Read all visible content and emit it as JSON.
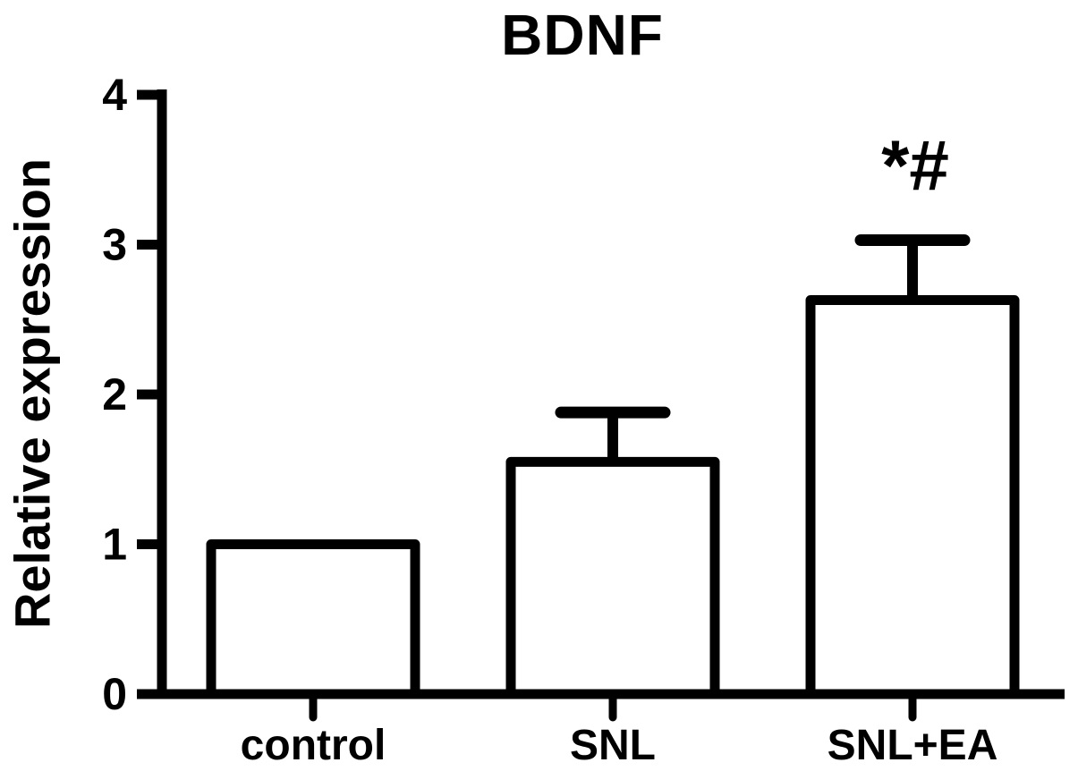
{
  "chart_data": {
    "type": "bar",
    "title": "BDNF",
    "ylabel": "Relative expression",
    "xlabel": "",
    "categories": [
      "control",
      "SNL",
      "SNL+EA"
    ],
    "values": [
      1.0,
      1.55,
      2.63
    ],
    "errors_upper": [
      0,
      0.33,
      0.4
    ],
    "yticks": [
      0,
      1,
      2,
      3,
      4
    ],
    "ylim": [
      0,
      4
    ],
    "grid": false,
    "legend": null,
    "bar_fill_color": "#ffffff",
    "ink_color": "#000000",
    "annotations": [
      {
        "text": "*#",
        "category": "SNL+EA"
      }
    ]
  }
}
